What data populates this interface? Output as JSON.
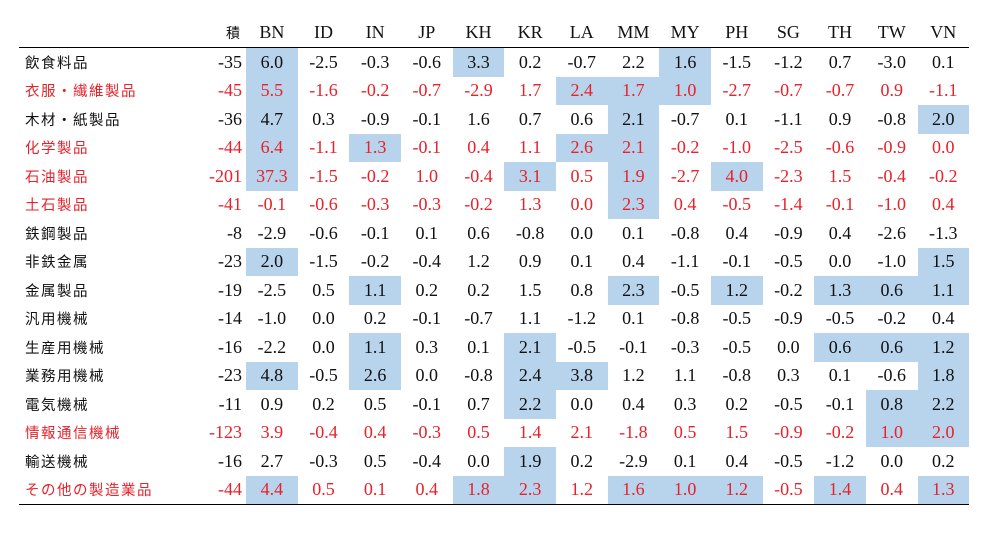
{
  "columns": [
    "積",
    "BN",
    "ID",
    "IN",
    "JP",
    "KH",
    "KR",
    "LA",
    "MM",
    "MY",
    "PH",
    "SG",
    "TH",
    "TW",
    "VN"
  ],
  "rows": [
    {
      "label": "飲食料品",
      "red": false,
      "values": [
        "-35",
        "6.0",
        "-2.5",
        "-0.3",
        "-0.6",
        "3.3",
        "0.2",
        "-0.7",
        "2.2",
        "1.6",
        "-1.5",
        "-1.2",
        "0.7",
        "-3.0",
        "0.1"
      ],
      "highlight": [
        1,
        5,
        9
      ]
    },
    {
      "label": "衣服・繊維製品",
      "red": true,
      "values": [
        "-45",
        "5.5",
        "-1.6",
        "-0.2",
        "-0.7",
        "-2.9",
        "1.7",
        "2.4",
        "1.7",
        "1.0",
        "-2.7",
        "-0.7",
        "-0.7",
        "0.9",
        "-1.1"
      ],
      "highlight": [
        1,
        7,
        8,
        9
      ]
    },
    {
      "label": "木材・紙製品",
      "red": false,
      "values": [
        "-36",
        "4.7",
        "0.3",
        "-0.9",
        "-0.1",
        "1.6",
        "0.7",
        "0.6",
        "2.1",
        "-0.7",
        "0.1",
        "-1.1",
        "0.9",
        "-0.8",
        "2.0"
      ],
      "highlight": [
        1,
        8,
        14
      ]
    },
    {
      "label": "化学製品",
      "red": true,
      "values": [
        "-44",
        "6.4",
        "-1.1",
        "1.3",
        "-0.1",
        "0.4",
        "1.1",
        "2.6",
        "2.1",
        "-0.2",
        "-1.0",
        "-2.5",
        "-0.6",
        "-0.9",
        "0.0"
      ],
      "highlight": [
        1,
        3,
        7,
        8
      ]
    },
    {
      "label": "石油製品",
      "red": true,
      "values": [
        "-201",
        "37.3",
        "-1.5",
        "-0.2",
        "1.0",
        "-0.4",
        "3.1",
        "0.5",
        "1.9",
        "-2.7",
        "4.0",
        "-2.3",
        "1.5",
        "-0.4",
        "-0.2"
      ],
      "highlight": [
        1,
        6,
        8,
        10
      ]
    },
    {
      "label": "土石製品",
      "red": true,
      "values": [
        "-41",
        "-0.1",
        "-0.6",
        "-0.3",
        "-0.3",
        "-0.2",
        "1.3",
        "0.0",
        "2.3",
        "0.4",
        "-0.5",
        "-1.4",
        "-0.1",
        "-1.0",
        "0.4"
      ],
      "highlight": [
        8
      ]
    },
    {
      "label": "鉄鋼製品",
      "red": false,
      "values": [
        "-8",
        "-2.9",
        "-0.6",
        "-0.1",
        "0.1",
        "0.6",
        "-0.8",
        "0.0",
        "0.1",
        "-0.8",
        "0.4",
        "-0.9",
        "0.4",
        "-2.6",
        "-1.3"
      ],
      "highlight": []
    },
    {
      "label": "非鉄金属",
      "red": false,
      "values": [
        "-23",
        "2.0",
        "-1.5",
        "-0.2",
        "-0.4",
        "1.2",
        "0.9",
        "0.1",
        "0.4",
        "-1.1",
        "-0.1",
        "-0.5",
        "0.0",
        "-1.0",
        "1.5"
      ],
      "highlight": [
        1,
        14
      ]
    },
    {
      "label": "金属製品",
      "red": false,
      "values": [
        "-19",
        "-2.5",
        "0.5",
        "1.1",
        "0.2",
        "0.2",
        "1.5",
        "0.8",
        "2.3",
        "-0.5",
        "1.2",
        "-0.2",
        "1.3",
        "0.6",
        "1.1"
      ],
      "highlight": [
        3,
        8,
        10,
        12,
        13,
        14
      ]
    },
    {
      "label": "汎用機械",
      "red": false,
      "values": [
        "-14",
        "-1.0",
        "0.0",
        "0.2",
        "-0.1",
        "-0.7",
        "1.1",
        "-1.2",
        "0.1",
        "-0.8",
        "-0.5",
        "-0.9",
        "-0.5",
        "-0.2",
        "0.4"
      ],
      "highlight": []
    },
    {
      "label": "生産用機械",
      "red": false,
      "values": [
        "-16",
        "-2.2",
        "0.0",
        "1.1",
        "0.3",
        "0.1",
        "2.1",
        "-0.5",
        "-0.1",
        "-0.3",
        "-0.5",
        "0.0",
        "0.6",
        "0.6",
        "1.2"
      ],
      "highlight": [
        3,
        6,
        12,
        13,
        14
      ]
    },
    {
      "label": "業務用機械",
      "red": false,
      "values": [
        "-23",
        "4.8",
        "-0.5",
        "2.6",
        "0.0",
        "-0.8",
        "2.4",
        "3.8",
        "1.2",
        "1.1",
        "-0.8",
        "0.3",
        "0.1",
        "-0.6",
        "1.8"
      ],
      "highlight": [
        1,
        3,
        6,
        7,
        14
      ]
    },
    {
      "label": "電気機械",
      "red": false,
      "values": [
        "-11",
        "0.9",
        "0.2",
        "0.5",
        "-0.1",
        "0.7",
        "2.2",
        "0.0",
        "0.4",
        "0.3",
        "0.2",
        "-0.5",
        "-0.1",
        "0.8",
        "2.2"
      ],
      "highlight": [
        6,
        13,
        14
      ]
    },
    {
      "label": "情報通信機械",
      "red": true,
      "values": [
        "-123",
        "3.9",
        "-0.4",
        "0.4",
        "-0.3",
        "0.5",
        "1.4",
        "2.1",
        "-1.8",
        "0.5",
        "1.5",
        "-0.9",
        "-0.2",
        "1.0",
        "2.0"
      ],
      "highlight": [
        13,
        14
      ]
    },
    {
      "label": "輸送機械",
      "red": false,
      "values": [
        "-16",
        "2.7",
        "-0.3",
        "0.5",
        "-0.4",
        "0.0",
        "1.9",
        "0.2",
        "-2.9",
        "0.1",
        "0.4",
        "-0.5",
        "-1.2",
        "0.0",
        "0.2"
      ],
      "highlight": [
        6
      ]
    },
    {
      "label": "その他の製造業品",
      "red": true,
      "values": [
        "-44",
        "4.4",
        "0.5",
        "0.1",
        "0.4",
        "1.8",
        "2.3",
        "1.2",
        "1.6",
        "1.0",
        "1.2",
        "-0.5",
        "1.4",
        "0.4",
        "1.3"
      ],
      "highlight": [
        1,
        5,
        6,
        8,
        9,
        10,
        12,
        14
      ]
    }
  ],
  "colors": {
    "highlight": "#b8d3ec",
    "red_text": "#e8212a",
    "text": "#111111"
  }
}
